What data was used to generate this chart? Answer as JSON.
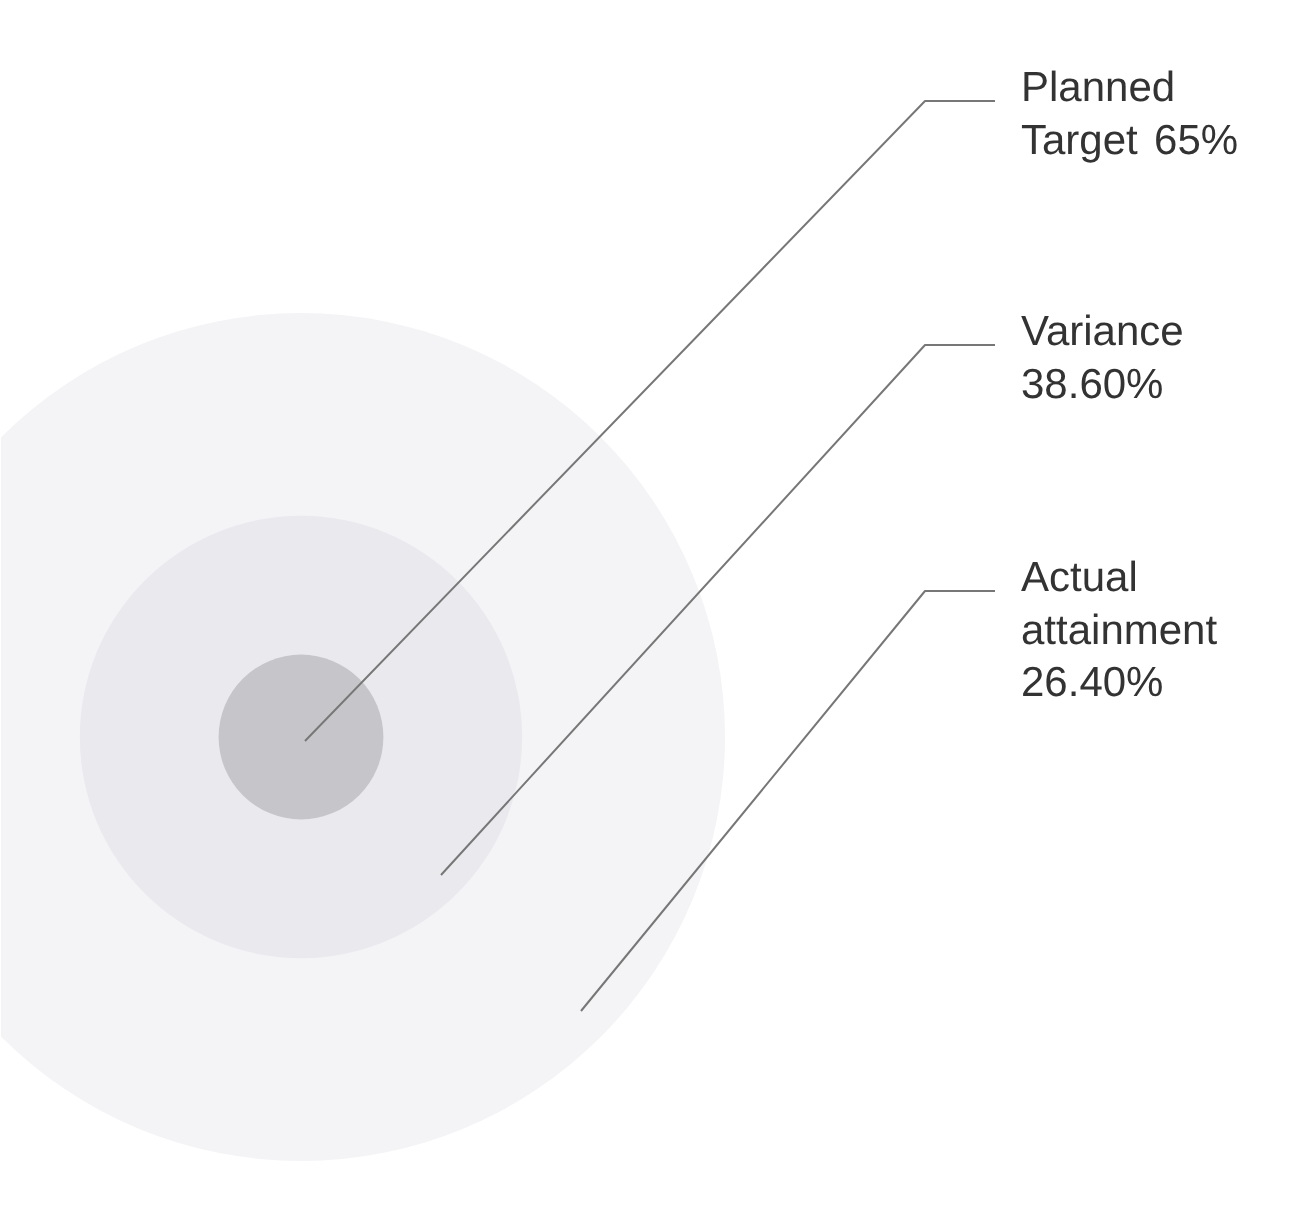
{
  "chart_data": {
    "type": "other",
    "categories": [
      "Planned\nTarget",
      "Variance",
      "Actual\nattainment"
    ],
    "values": [
      65,
      38.6,
      26.4
    ],
    "value_labels": [
      "65%",
      "38.60%",
      "26.40%"
    ],
    "colors": [
      "#c6c6ca",
      "#e9e9ee",
      "#f4f4f7"
    ]
  }
}
